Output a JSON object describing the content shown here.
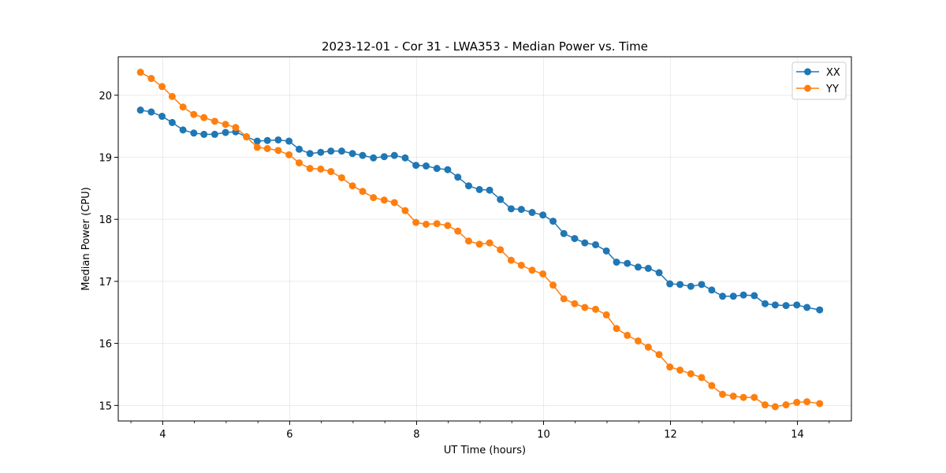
{
  "chart_data": {
    "type": "line",
    "title": "2023-12-01 - Cor 31 - LWA353 - Median Power vs. Time",
    "xlabel": "UT Time (hours)",
    "ylabel": "Median Power (CPU)",
    "xlim": [
      3.3,
      14.85
    ],
    "ylim": [
      14.75,
      20.62
    ],
    "xticks": [
      4,
      6,
      8,
      10,
      12,
      14
    ],
    "xtick_labels": [
      "4",
      "6",
      "8",
      "10",
      "12",
      "14"
    ],
    "yticks": [
      15,
      16,
      17,
      18,
      19,
      20
    ],
    "ytick_labels": [
      "15",
      "16",
      "17",
      "18",
      "19",
      "20"
    ],
    "grid": true,
    "legend_position": "top-right",
    "x": [
      3.65,
      3.82,
      3.99,
      4.15,
      4.32,
      4.49,
      4.65,
      4.82,
      4.99,
      5.15,
      5.32,
      5.49,
      5.65,
      5.82,
      5.99,
      6.15,
      6.32,
      6.49,
      6.65,
      6.82,
      6.99,
      7.15,
      7.32,
      7.49,
      7.65,
      7.82,
      7.99,
      8.15,
      8.32,
      8.49,
      8.65,
      8.82,
      8.99,
      9.15,
      9.32,
      9.49,
      9.65,
      9.82,
      9.99,
      10.15,
      10.32,
      10.49,
      10.65,
      10.82,
      10.99,
      11.15,
      11.32,
      11.49,
      11.65,
      11.82,
      11.99,
      12.15,
      12.32,
      12.49,
      12.65,
      12.82,
      12.99,
      13.15,
      13.32,
      13.49,
      13.65,
      13.82,
      13.99,
      14.15,
      14.35
    ],
    "series": [
      {
        "name": "XX",
        "color": "#1f77b4",
        "values": [
          19.76,
          19.73,
          19.66,
          19.56,
          19.44,
          19.39,
          19.37,
          19.37,
          19.4,
          19.41,
          19.33,
          19.26,
          19.27,
          19.28,
          19.26,
          19.13,
          19.06,
          19.08,
          19.1,
          19.1,
          19.06,
          19.03,
          18.99,
          19.01,
          19.03,
          18.99,
          18.87,
          18.86,
          18.82,
          18.8,
          18.68,
          18.54,
          18.48,
          18.47,
          18.32,
          18.17,
          18.16,
          18.11,
          18.07,
          17.97,
          17.77,
          17.69,
          17.62,
          17.59,
          17.49,
          17.31,
          17.29,
          17.23,
          17.21,
          17.14,
          16.96,
          16.95,
          16.92,
          16.95,
          16.86,
          16.76,
          16.76,
          16.78,
          16.77,
          16.64,
          16.62,
          16.61,
          16.62,
          16.58,
          16.54
        ]
      },
      {
        "name": "YY",
        "color": "#ff7f0e",
        "values": [
          20.37,
          20.27,
          20.14,
          19.98,
          19.81,
          19.69,
          19.64,
          19.58,
          19.53,
          19.48,
          19.33,
          19.16,
          19.14,
          19.11,
          19.04,
          18.91,
          18.82,
          18.81,
          18.77,
          18.67,
          18.54,
          18.45,
          18.35,
          18.31,
          18.27,
          18.14,
          17.95,
          17.92,
          17.93,
          17.9,
          17.81,
          17.65,
          17.6,
          17.62,
          17.51,
          17.34,
          17.26,
          17.18,
          17.12,
          16.94,
          16.72,
          16.64,
          16.58,
          16.55,
          16.46,
          16.24,
          16.13,
          16.04,
          15.94,
          15.82,
          15.62,
          15.57,
          15.51,
          15.45,
          15.32,
          15.18,
          15.15,
          15.13,
          15.13,
          15.01,
          14.98,
          15.01,
          15.05,
          15.06,
          15.03
        ]
      }
    ]
  }
}
